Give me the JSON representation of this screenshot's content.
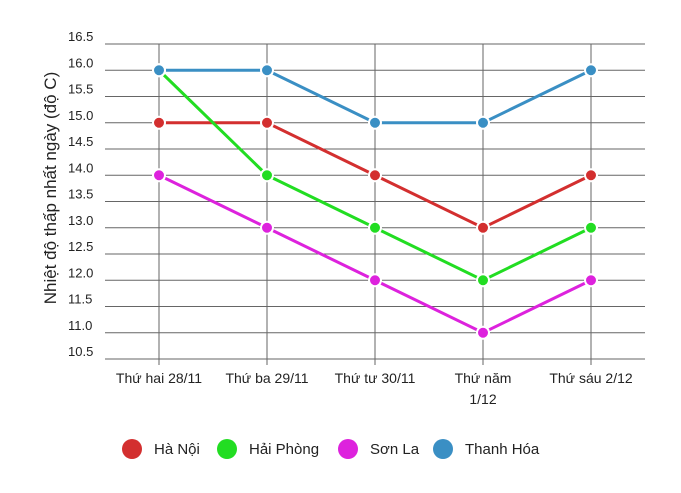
{
  "chart_data": {
    "type": "line",
    "title": "",
    "xlabel": "",
    "ylabel": "Nhiệt độ thấp nhất ngày (độ C)",
    "categories": [
      [
        "Thứ hai 28/11"
      ],
      [
        "Thứ ba 29/11"
      ],
      [
        "Thứ tư 30/11"
      ],
      [
        "Thứ năm",
        "1/12"
      ],
      [
        "Thứ sáu 2/12"
      ]
    ],
    "ylim": [
      10.5,
      16.5
    ],
    "yticks": [
      "16.5",
      "16.0",
      "15.5",
      "15.0",
      "14.5",
      "14.0",
      "13.5",
      "13.0",
      "12.5",
      "12.0",
      "11.5",
      "11.0",
      "10.5"
    ],
    "grid": true,
    "legend_position": "bottom",
    "series": [
      {
        "name": "Hà Nội",
        "color": "#d32f2f",
        "values": [
          15,
          15,
          14,
          13,
          14
        ]
      },
      {
        "name": "Hải Phòng",
        "color": "#22dd22",
        "values": [
          16,
          14,
          13,
          12,
          13
        ]
      },
      {
        "name": "Sơn La",
        "color": "#dd22dd",
        "values": [
          14,
          13,
          12,
          11,
          12
        ]
      },
      {
        "name": "Thanh Hóa",
        "color": "#3a8fc4",
        "values": [
          16,
          16,
          15,
          15,
          16
        ]
      }
    ]
  }
}
